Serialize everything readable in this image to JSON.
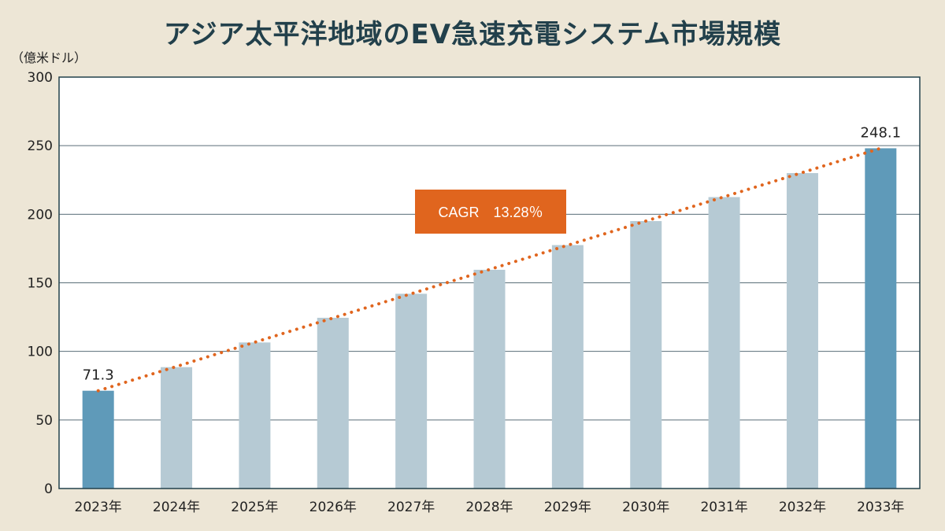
{
  "title": "アジア太平洋地域のEV急速充電システム市場規模",
  "unit_label": "（億米ドル）",
  "cagr_label": "CAGR　13.28％",
  "colors": {
    "background": "#ede6d6",
    "plot_background": "#ffffff",
    "bar_highlight": "#5f9ab9",
    "bar_default": "#b6cad4",
    "trend_line": "#e0651e",
    "axis": "#22404b",
    "title": "#22404b"
  },
  "chart_data": {
    "type": "bar",
    "title": "アジア太平洋地域のEV急速充電システム市場規模",
    "ylabel": "（億米ドル）",
    "xlabel": "",
    "categories": [
      "2023年",
      "2024年",
      "2025年",
      "2026年",
      "2027年",
      "2028年",
      "2029年",
      "2030年",
      "2031年",
      "2032年",
      "2033年"
    ],
    "values": [
      71.3,
      88.5,
      106.5,
      124.5,
      142,
      159.5,
      177.5,
      195,
      212.5,
      230,
      248.1
    ],
    "highlighted": [
      "2023年",
      "2033年"
    ],
    "data_labels": [
      {
        "category": "2023年",
        "text": "71.3"
      },
      {
        "category": "2033年",
        "text": "248.1"
      }
    ],
    "ylim": [
      0,
      300
    ],
    "yticks": [
      0,
      50,
      100,
      150,
      200,
      250,
      300
    ],
    "grid": true,
    "trend_line": {
      "style": "dotted",
      "from": 71.3,
      "to": 248.1
    },
    "annotation": "CAGR　13.28％"
  }
}
